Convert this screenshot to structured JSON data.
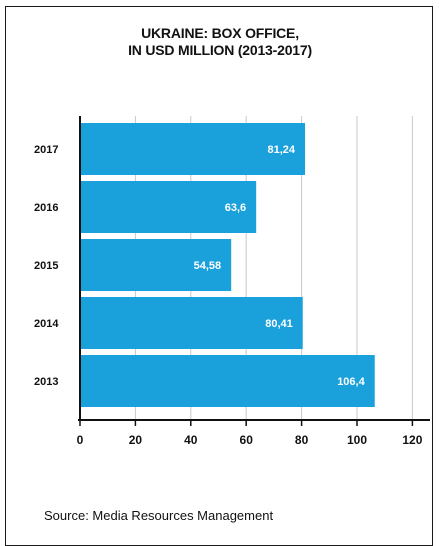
{
  "chart_data": {
    "type": "bar",
    "orientation": "horizontal",
    "title_lines": [
      "UKRAINE: BOX OFFICE,",
      "IN USD MILLION (2013-2017)"
    ],
    "categories": [
      "2017",
      "2016",
      "2015",
      "2014",
      "2013"
    ],
    "values": [
      81.24,
      63.6,
      54.58,
      80.41,
      106.4
    ],
    "value_labels": [
      "81,24",
      "63,6",
      "54,58",
      "80,41",
      "106,4"
    ],
    "xlim": [
      0,
      120
    ],
    "xticks": [
      "0",
      "20",
      "40",
      "60",
      "80",
      "100",
      "120"
    ],
    "xlabel": "",
    "ylabel": "",
    "grid": "vertical",
    "bar_color": "#1aa0db",
    "grid_color": "#c8c8c8"
  },
  "source": "Source: Media Resources Management"
}
